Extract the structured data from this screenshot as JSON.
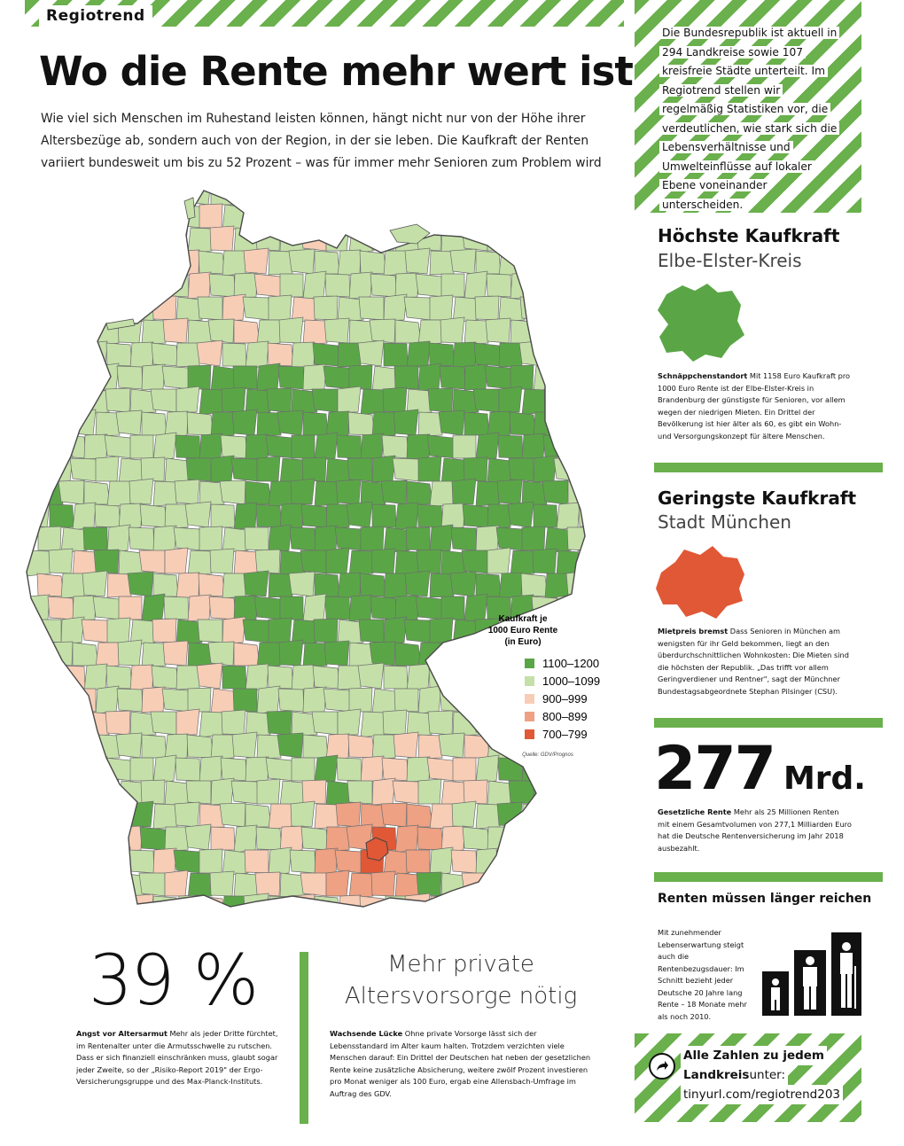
{
  "header": {
    "brand": "Regiotrend",
    "headline": "Wo die Rente mehr wert ist",
    "lede": "Wie viel sich Menschen im Ruhestand leisten können, hängt nicht nur von der Höhe ihrer Altersbezüge ab, sondern auch von der Region, in der sie leben. Die Kaufkraft der Renten variiert bundesweit um bis zu 52 Prozent – was für immer mehr Senioren zum Problem wird"
  },
  "intro": {
    "text": "Die Bundesrepublik ist aktuell in 294 Landkreise sowie 107 kreisfreie Städte unterteilt. Im Regiotrend stellen wir regelmäßig Statistiken vor, die verdeutlichen, wie stark sich die Lebensverhältnisse und Umwelteinflüsse auf lokaler Ebene voneinander unterscheiden."
  },
  "highest": {
    "title": "Höchste Kaufkraft",
    "region": "Elbe-Elster-Kreis",
    "lead": "Schnäppchenstandort",
    "text": "Mit 1158 Euro Kaufkraft pro 1000 Euro Rente ist der Elbe-Elster-Kreis in Brandenburg der günstigste für Senioren, vor allem wegen der niedrigen Mieten. Ein Drittel der Bevölkerung ist hier älter als 60, es gibt ein Wohn- und Versorgungskonzept für ältere Menschen."
  },
  "lowest": {
    "title": "Geringste Kaufkraft",
    "region": "Stadt München",
    "lead": "Mietpreis bremst",
    "text": "Dass Senioren in München am wenigsten für ihr Geld bekommen, liegt an den überdurchschnittlichen Wohnkosten: Die Mieten sind die höchsten der Republik. „Das trifft vor allem Geringverdiener und Rentner\", sagt der Münchner Bundestagsabgeordnete Stephan Pilsinger (CSU)."
  },
  "volume": {
    "number": "277",
    "unit": "Mrd.",
    "lead": "Gesetzliche Rente",
    "text": "Mehr als 25 Millionen Renten mit einem Gesamtvolumen von 277,1 Milliarden Euro hat die Deutsche Rentenversicherung im Jahr 2018 ausbezahlt."
  },
  "longer": {
    "title": "Renten müssen länger reichen",
    "text": "Mit zunehmender Lebenserwartung steigt auch die Rentenbezugsdauer: Im Schnitt bezieht jeder Deutsche 20 Jahre lang Rente – 18 Monate mehr als noch 2010."
  },
  "fear": {
    "number": "39 %",
    "lead": "Angst vor Altersarmut",
    "text": "Mehr als jeder Dritte fürchtet, im Rentenalter unter die Armutsschwelle zu rutschen. Dass er sich finanziell einschränken muss, glaubt sogar jeder Zweite, so der „Risiko-Report 2019\" der Ergo-Versicherungsgruppe und des Max-Planck-Instituts."
  },
  "private": {
    "title": "Mehr private Altersvorsorge nötig",
    "lead": "Wachsende Lücke",
    "text": "Ohne private Vorsorge lässt sich der Lebensstandard im Alter kaum halten. Trotzdem verzichten viele Menschen darauf: Ein Drittel der Deutschen hat neben der gesetzlichen Rente keine zusätzliche Absicherung, weitere zwölf Prozent investieren pro Monat weniger als 100 Euro, ergab eine Allensbach-Umfrage im Auftrag des GDV."
  },
  "link": {
    "line1": "Alle Zahlen zu jedem",
    "line2a": "Landkreis",
    "line2b": " unter:",
    "url": "tinyurl.com/regiotrend203",
    "icon": "share-arrow-icon"
  },
  "legend": {
    "title_line1": "Kaufkraft je",
    "title_line2": "1000 Euro Rente",
    "title_line3": "(in Euro)",
    "source": "Quelle: GDV/Prognos",
    "items": [
      {
        "label": "1100–1200",
        "color": "#5aa646"
      },
      {
        "label": "1000–1099",
        "color": "#c4e0a8"
      },
      {
        "label": "900–999",
        "color": "#f7cdb6"
      },
      {
        "label": "800–899",
        "color": "#eea183"
      },
      {
        "label": "700–799",
        "color": "#e05836"
      }
    ]
  }
}
